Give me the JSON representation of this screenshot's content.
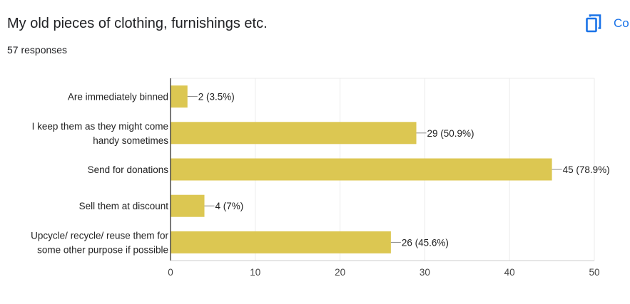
{
  "header": {
    "title": "My old pieces of clothing, furnishings etc.",
    "responses": "57 responses",
    "copy_label": "Co"
  },
  "icons": {
    "copy": "copy-icon"
  },
  "colors": {
    "bar": "#dcc752",
    "accent": "#1a73e8",
    "grid": "#ebebeb",
    "axis": "#333333"
  },
  "chart_data": {
    "type": "bar",
    "orientation": "horizontal",
    "categories": [
      [
        "Are immediately binned"
      ],
      [
        "I keep them as they might come",
        "handy sometimes"
      ],
      [
        "Send for donations"
      ],
      [
        "Sell them at discount"
      ],
      [
        "Upcycle/ recycle/ reuse them for",
        "some other purpose if possible"
      ]
    ],
    "values": [
      2,
      29,
      45,
      4,
      26
    ],
    "value_labels": [
      "2 (3.5%)",
      "29 (50.9%)",
      "45 (78.9%)",
      "4 (7%)",
      "26 (45.6%)"
    ],
    "xlim": [
      0,
      50
    ],
    "xticks": [
      0,
      10,
      20,
      30,
      40,
      50
    ],
    "grid": true,
    "title": "",
    "xlabel": "",
    "ylabel": ""
  }
}
